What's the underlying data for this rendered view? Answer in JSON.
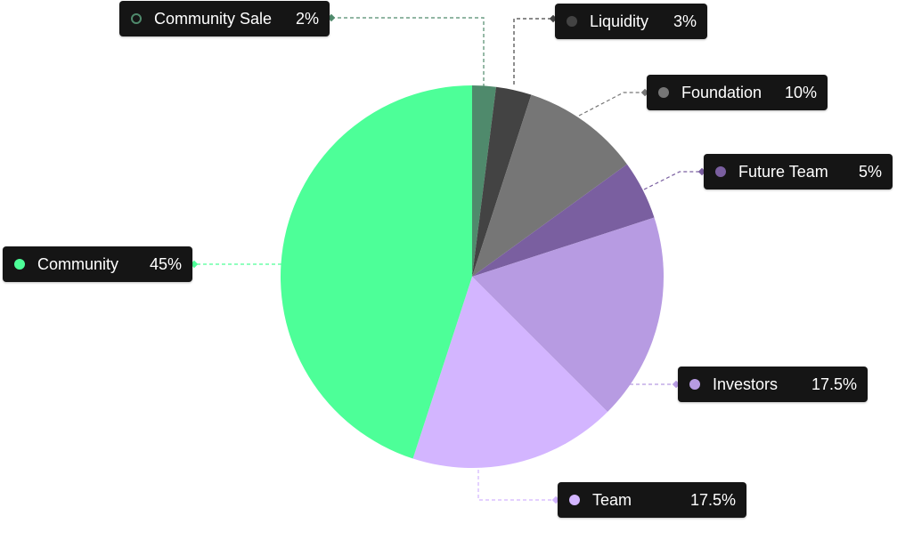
{
  "chart_data": {
    "type": "pie",
    "title": "",
    "start_angle_deg": 0,
    "direction": "clockwise",
    "slices": [
      {
        "name": "Community Sale",
        "value": 2,
        "label": "2%",
        "color": "#4f8a6c",
        "dot_style": "outline"
      },
      {
        "name": "Liquidity",
        "value": 3,
        "label": "3%",
        "color": "#434343",
        "dot_style": "fill"
      },
      {
        "name": "Foundation",
        "value": 10,
        "label": "10%",
        "color": "#767676",
        "dot_style": "fill"
      },
      {
        "name": "Future Team",
        "value": 5,
        "label": "5%",
        "color": "#7a5fa0",
        "dot_style": "fill"
      },
      {
        "name": "Investors",
        "value": 17.5,
        "label": "17.5%",
        "color": "#b79be2",
        "dot_style": "fill"
      },
      {
        "name": "Team",
        "value": 17.5,
        "label": "17.5%",
        "color": "#d3b5ff",
        "dot_style": "fill"
      },
      {
        "name": "Community",
        "value": 45,
        "label": "45%",
        "color": "#4dff98",
        "dot_style": "fill"
      }
    ],
    "legend": "callout-labels"
  }
}
